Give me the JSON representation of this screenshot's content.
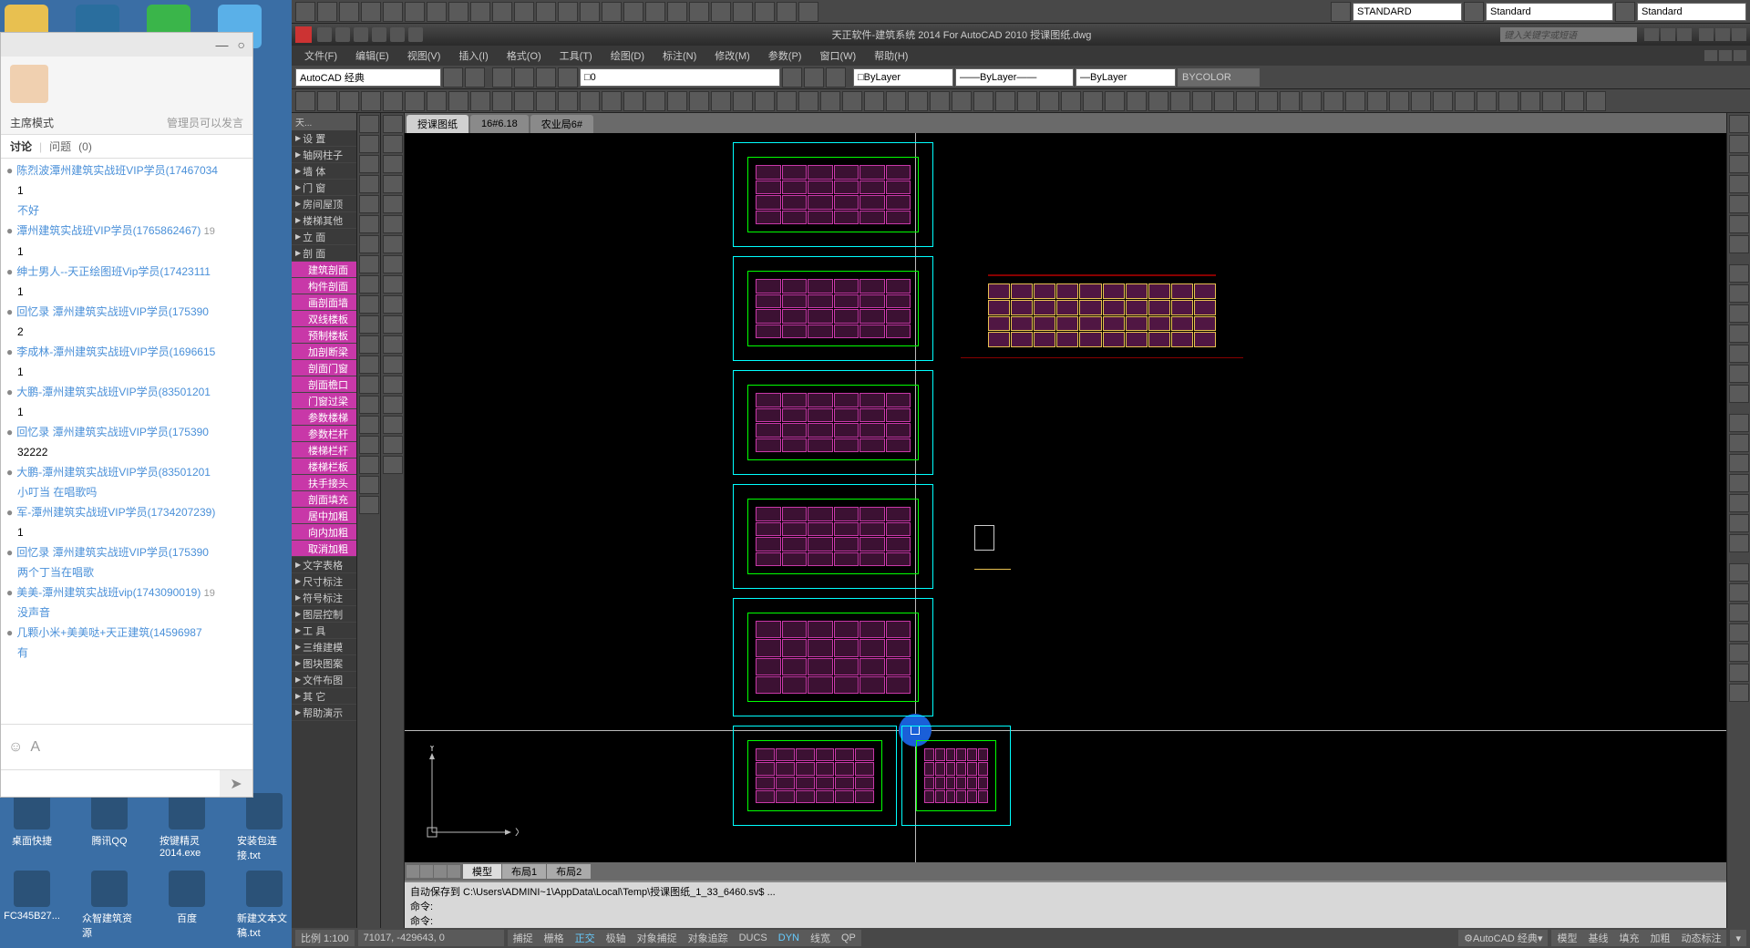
{
  "desktop": {
    "bottom_icons": [
      "桌面快捷",
      "腾讯QQ",
      "按键精灵2014.exe",
      "安装包连接.txt"
    ],
    "row2_icons": [
      "FC345B27...",
      "众智建筑资源",
      "百度",
      "新建文本文稿.txt"
    ]
  },
  "chat": {
    "mode_label": "主席模式",
    "admin_hint": "管理员可以发言",
    "tabs": {
      "discuss": "讨论",
      "question": "问题",
      "count": "(0)"
    },
    "messages": [
      {
        "user": "陈烈波潭州建筑实战班VIP学员(17467034",
        "text": "1",
        "reply": "不好"
      },
      {
        "user": "潭州建筑实战班VIP学员(1765862467)",
        "time": "19",
        "text": "1"
      },
      {
        "user": "绅士男人--天正绘图班Vip学员(17423111",
        "text": "1"
      },
      {
        "user": "回忆录 潭州建筑实战班VIP学员(175390",
        "text": "2"
      },
      {
        "user": "李成林-潭州建筑实战班VIP学员(1696615",
        "text": "1"
      },
      {
        "user": "大鹏-潭州建筑实战班VIP学员(83501201",
        "text": "1"
      },
      {
        "user": "回忆录 潭州建筑实战班VIP学员(175390",
        "text": "32222"
      },
      {
        "user": "大鹏-潭州建筑实战班VIP学员(83501201",
        "reply": "小叮当 在唱歌吗"
      },
      {
        "user": "军-潭州建筑实战班VIP学员(1734207239)",
        "text": "1"
      },
      {
        "user": "回忆录 潭州建筑实战班VIP学员(175390",
        "reply": "两个丁当在唱歌"
      },
      {
        "user": "美美-潭州建筑实战班vip(1743090019)",
        "time": "19",
        "reply": "没声音"
      },
      {
        "user": "几颗小米+美美哒+天正建筑(14596987",
        "reply": "有"
      }
    ]
  },
  "acad": {
    "title": "天正软件-建筑系统 2014 For AutoCAD 2010  授课图纸.dwg",
    "search_ph": "键入关键字或短语",
    "menu": [
      "文件(F)",
      "编辑(E)",
      "视图(V)",
      "插入(I)",
      "格式(O)",
      "工具(T)",
      "绘图(D)",
      "标注(N)",
      "修改(M)",
      "参数(P)",
      "窗口(W)",
      "帮助(H)"
    ],
    "workspace": "AutoCAD 经典",
    "layer": "0",
    "style_std": "STANDARD",
    "style2": "Standard",
    "style3": "Standard",
    "bylayer": "ByLayer",
    "btcolor": "BYCOLOR",
    "panel_hdr": "天...",
    "panel_top": [
      "设 置",
      "轴网柱子",
      "墙 体",
      "门 窗",
      "房间屋顶",
      "楼梯其他",
      "立 面",
      "剖 面"
    ],
    "panel_section": [
      "建筑剖面",
      "构件剖面",
      "画剖面墙",
      "双线楼板",
      "预制楼板",
      "加剖断梁",
      "剖面门窗",
      "剖面檐口",
      "门窗过梁",
      "参数楼梯",
      "参数栏杆",
      "楼梯栏杆",
      "楼梯栏板",
      "扶手接头",
      "剖面填充",
      "居中加粗",
      "向内加粗",
      "取消加粗"
    ],
    "panel_bottom": [
      "文字表格",
      "尺寸标注",
      "符号标注",
      "图层控制",
      "工 具",
      "三维建模",
      "图块图案",
      "文件布图",
      "其 它",
      "帮助演示"
    ],
    "file_tabs": [
      "授课图纸",
      "16#6.18",
      "农业局6#"
    ],
    "layout_tabs": [
      "模型",
      "布局1",
      "布局2"
    ],
    "cmd_save": "自动保存到 C:\\Users\\ADMINI~1\\AppData\\Local\\Temp\\授课图纸_1_33_6460.sv$ ...",
    "cmd_prompt": "命令:",
    "status": {
      "scale": "比例 1:100",
      "coords": "71017, -429643, 0",
      "toggles": [
        "捕捉",
        "栅格",
        "正交",
        "极轴",
        "对象捕捉",
        "对象追踪",
        "DUCS",
        "DYN",
        "线宽",
        "QP"
      ],
      "on_indices": [
        2,
        7
      ],
      "right": "AutoCAD 经典",
      "right2": [
        "模型",
        "基线",
        "填充",
        "加粗",
        "动态标注"
      ]
    }
  }
}
